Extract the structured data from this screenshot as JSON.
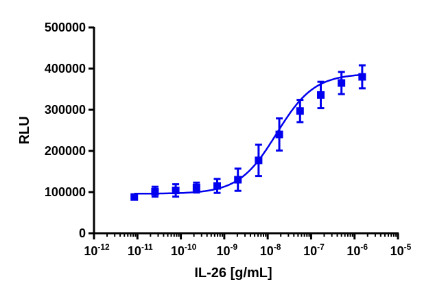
{
  "chart_data": {
    "type": "scatter",
    "title": "",
    "xlabel": "IL-26 [g/mL]",
    "ylabel": "RLU",
    "xscale": "log",
    "xlim": [
      1e-12,
      1e-05
    ],
    "ylim": [
      0,
      500000
    ],
    "xticks": [
      {
        "base": "10",
        "exp": "-12"
      },
      {
        "base": "10",
        "exp": "-11"
      },
      {
        "base": "10",
        "exp": "-10"
      },
      {
        "base": "10",
        "exp": "-9"
      },
      {
        "base": "10",
        "exp": "-8"
      },
      {
        "base": "10",
        "exp": "-7"
      },
      {
        "base": "10",
        "exp": "-6"
      },
      {
        "base": "10",
        "exp": "-5"
      }
    ],
    "yticks": [
      "0",
      "100000",
      "200000",
      "300000",
      "400000",
      "500000"
    ],
    "ytick_values": [
      0,
      100000,
      200000,
      300000,
      400000,
      500000
    ],
    "color": "#0000ee",
    "series": [
      {
        "name": "IL-26",
        "x": [
          8.47e-12,
          2.54e-11,
          7.62e-11,
          2.29e-10,
          6.86e-10,
          2.06e-09,
          6.17e-09,
          1.85e-08,
          5.56e-08,
          1.67e-07,
          5e-07,
          1.5e-06
        ],
        "y": [
          88000,
          101000,
          104000,
          111000,
          115000,
          130000,
          177000,
          240000,
          297000,
          336000,
          365000,
          380000
        ],
        "error": [
          5000,
          12000,
          15000,
          12000,
          17000,
          27000,
          38000,
          39000,
          27000,
          32000,
          27000,
          28000
        ]
      }
    ],
    "fit": {
      "model": "4PL",
      "bottom": 96000,
      "top": 388000,
      "ec50": 1.6e-08,
      "hill": 1.0
    }
  }
}
